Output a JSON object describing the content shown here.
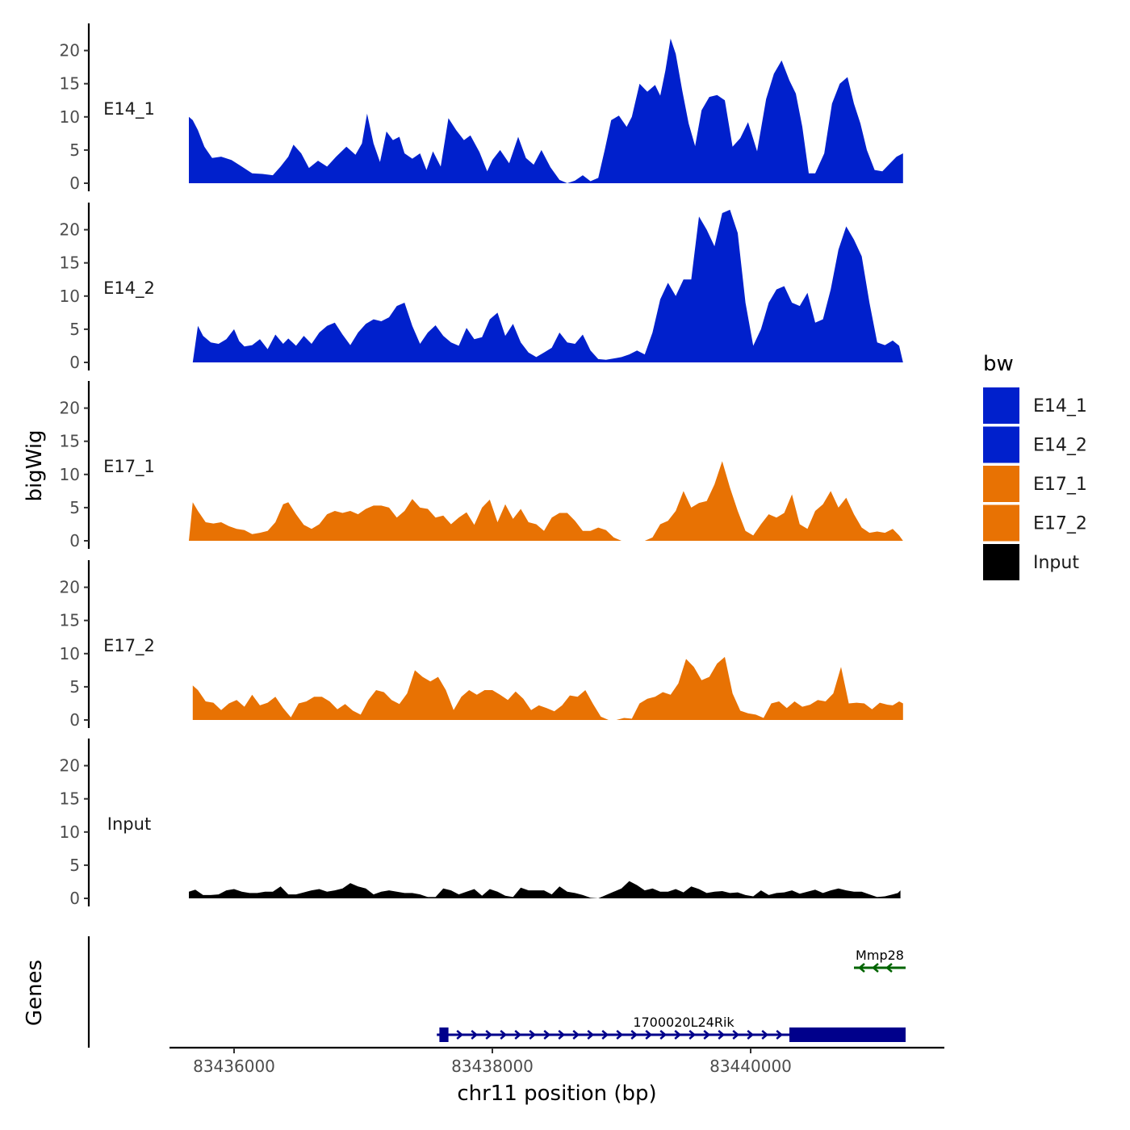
{
  "chart_data": {
    "type": "area",
    "title": "",
    "xlabel": "chr11 position (bp)",
    "ylabel": "bigWig",
    "genes_ylabel": "Genes",
    "xlim": [
      83435500,
      83441500
    ],
    "ylim": [
      0,
      24
    ],
    "x_ticks": [
      83436000,
      83438000,
      83440000
    ],
    "x_tick_labels": [
      "83436000",
      "83438000",
      "83440000"
    ],
    "y_ticks": [
      0,
      5,
      10,
      15,
      20
    ],
    "y_tick_labels": [
      "0",
      "5",
      "10",
      "15",
      "20"
    ],
    "legend": {
      "title": "bw",
      "position": "right",
      "entries": [
        {
          "label": "E14_1",
          "color": "#0020CC"
        },
        {
          "label": "E14_2",
          "color": "#0020CC"
        },
        {
          "label": "E17_1",
          "color": "#E87203"
        },
        {
          "label": "E17_2",
          "color": "#E87203"
        },
        {
          "label": "Input",
          "color": "#000000"
        }
      ]
    },
    "series": [
      {
        "name": "E14_1",
        "color": "#0020CC",
        "x": [
          83435650,
          83435680,
          83435720,
          83435770,
          83435830,
          83435900,
          83435980,
          83436060,
          83436140,
          83436220,
          83436300,
          83436360,
          83436420,
          83436460,
          83436520,
          83436580,
          83436650,
          83436720,
          83436790,
          83436870,
          83436940,
          83436990,
          83437030,
          83437080,
          83437130,
          83437180,
          83437230,
          83437280,
          83437320,
          83437380,
          83437440,
          83437490,
          83437540,
          83437600,
          83437660,
          83437720,
          83437780,
          83437830,
          83437900,
          83437960,
          83438000,
          83438060,
          83438130,
          83438200,
          83438260,
          83438320,
          83438380,
          83438450,
          83438520,
          83438580,
          83438640,
          83438700,
          83438760,
          83438820,
          83438870,
          83438920,
          83438980,
          83439040,
          83439080,
          83439140,
          83439200,
          83439260,
          83439300,
          83439340,
          83439380,
          83439420,
          83439470,
          83439520,
          83439570,
          83439620,
          83439680,
          83439740,
          83439800,
          83439860,
          83439920,
          83439980,
          83440050,
          83440120,
          83440180,
          83440240,
          83440300,
          83440350,
          83440400,
          83440450,
          83440500,
          83440570,
          83440630,
          83440690,
          83440750,
          83440800,
          83440850,
          83440900,
          83440960,
          83441020,
          83441080,
          83441130,
          83441180
        ],
        "y": [
          10,
          9.5,
          8,
          5.5,
          3.8,
          4,
          3.5,
          2.5,
          1.5,
          1.4,
          1.2,
          2.5,
          4,
          5.8,
          4.5,
          2.3,
          3.4,
          2.5,
          4,
          5.5,
          4.3,
          6,
          10.5,
          6,
          3.2,
          7.8,
          6.5,
          7,
          4.5,
          3.7,
          4.5,
          2,
          4.8,
          2.5,
          9.8,
          8,
          6.5,
          7.2,
          4.7,
          1.8,
          3.5,
          5,
          3,
          7,
          3.8,
          2.8,
          5,
          2.4,
          0.5,
          0,
          0.4,
          1.2,
          0.3,
          0.8,
          5,
          9.5,
          10.2,
          8.5,
          10,
          15,
          13.8,
          14.8,
          13.2,
          17,
          21.8,
          19.5,
          14,
          9,
          5.6,
          11,
          13,
          13.3,
          12.5,
          5.5,
          6.8,
          9.2,
          4.8,
          12.7,
          16.5,
          18.5,
          15.5,
          13.5,
          8.5,
          1.5,
          1.5,
          4.5,
          12,
          15,
          16,
          12,
          9,
          5,
          2,
          1.8,
          3,
          4,
          4.5
        ]
      },
      {
        "name": "E14_2",
        "color": "#0020CC",
        "x": [
          83435680,
          83435720,
          83435760,
          83435820,
          83435880,
          83435940,
          83436000,
          83436040,
          83436080,
          83436140,
          83436200,
          83436260,
          83436320,
          83436380,
          83436420,
          83436480,
          83436540,
          83436600,
          83436660,
          83436720,
          83436780,
          83436840,
          83436900,
          83436960,
          83437020,
          83437080,
          83437140,
          83437200,
          83437260,
          83437320,
          83437380,
          83437440,
          83437500,
          83437560,
          83437620,
          83437680,
          83437740,
          83437800,
          83437860,
          83437920,
          83437980,
          83438040,
          83438100,
          83438160,
          83438220,
          83438280,
          83438340,
          83438400,
          83438460,
          83438520,
          83438580,
          83438640,
          83438700,
          83438760,
          83438820,
          83438880,
          83438940,
          83439000,
          83439060,
          83439120,
          83439180,
          83439240,
          83439300,
          83439360,
          83439420,
          83439480,
          83439540,
          83439600,
          83439660,
          83439720,
          83439780,
          83439840,
          83439900,
          83439960,
          83440020,
          83440080,
          83440140,
          83440200,
          83440260,
          83440320,
          83440380,
          83440440,
          83440500,
          83440560,
          83440620,
          83440680,
          83440740,
          83440800,
          83440860,
          83440920,
          83440980,
          83441040,
          83441100,
          83441150,
          83441180
        ],
        "y": [
          0,
          5.5,
          4,
          3,
          2.8,
          3.5,
          5,
          3.2,
          2.4,
          2.6,
          3.5,
          2,
          4.2,
          2.8,
          3.6,
          2.5,
          4,
          2.8,
          4.5,
          5.5,
          6,
          4.2,
          2.6,
          4.5,
          5.8,
          6.5,
          6.2,
          6.8,
          8.5,
          9,
          5.5,
          2.8,
          4.5,
          5.6,
          4,
          3,
          2.5,
          5.2,
          3.5,
          3.8,
          6.5,
          7.5,
          4,
          5.8,
          3,
          1.5,
          0.8,
          1.5,
          2.2,
          4.5,
          3,
          2.8,
          4.2,
          1.8,
          0.5,
          0.4,
          0.6,
          0.8,
          1.2,
          1.8,
          1.2,
          4.5,
          9.5,
          12,
          10,
          12.5,
          12.5,
          22,
          20,
          17.5,
          22.5,
          23,
          19.5,
          9,
          2.5,
          5,
          9,
          11,
          11.5,
          9,
          8.5,
          10.5,
          6,
          6.5,
          11,
          17,
          20.5,
          18.5,
          16,
          9,
          3,
          2.6,
          3.3,
          2.5,
          0
        ]
      },
      {
        "name": "E17_1",
        "color": "#E87203",
        "x": [
          83435650,
          83435680,
          83435720,
          83435780,
          83435840,
          83435900,
          83435960,
          83436020,
          83436080,
          83436140,
          83436200,
          83436260,
          83436320,
          83436380,
          83436420,
          83436480,
          83436540,
          83436600,
          83436660,
          83436720,
          83436780,
          83436840,
          83436900,
          83436960,
          83437020,
          83437080,
          83437140,
          83437200,
          83437260,
          83437320,
          83437380,
          83437440,
          83437500,
          83437560,
          83437620,
          83437680,
          83437740,
          83437800,
          83437860,
          83437920,
          83437980,
          83438040,
          83438100,
          83438160,
          83438220,
          83438280,
          83438340,
          83438400,
          83438460,
          83438520,
          83438580,
          83438640,
          83438700,
          83438760,
          83438820,
          83438880,
          83438940,
          83439000,
          83439060,
          83439120,
          83439180,
          83439240,
          83439300,
          83439360,
          83439420,
          83439480,
          83439540,
          83439600,
          83439660,
          83439720,
          83439780,
          83439840,
          83439900,
          83439960,
          83440020,
          83440080,
          83440140,
          83440200,
          83440260,
          83440320,
          83440380,
          83440440,
          83440500,
          83440560,
          83440620,
          83440680,
          83440740,
          83440800,
          83440860,
          83440920,
          83440980,
          83441040,
          83441100,
          83441150,
          83441180
        ],
        "y": [
          0,
          5.8,
          4.5,
          2.8,
          2.6,
          2.8,
          2.2,
          1.8,
          1.6,
          1,
          1.2,
          1.5,
          2.8,
          5.5,
          5.8,
          4,
          2.4,
          1.8,
          2.5,
          4,
          4.5,
          4.2,
          4.5,
          4,
          4.8,
          5.3,
          5.3,
          5,
          3.5,
          4.5,
          6.3,
          5,
          4.8,
          3.5,
          3.8,
          2.5,
          3.5,
          4.3,
          2.4,
          5,
          6.2,
          2.8,
          5.5,
          3.3,
          4.8,
          2.8,
          2.5,
          1.5,
          3.5,
          4.2,
          4.2,
          3,
          1.5,
          1.5,
          2,
          1.6,
          0.5,
          0,
          0,
          0,
          0,
          0.5,
          2.5,
          3,
          4.5,
          7.5,
          5,
          5.7,
          6,
          8.5,
          12,
          8,
          4.5,
          1.5,
          0.8,
          2.5,
          4,
          3.5,
          4.2,
          7,
          2.5,
          1.8,
          4.5,
          5.5,
          7.5,
          5,
          6.5,
          4,
          2,
          1.2,
          1.4,
          1.2,
          1.8,
          0.8,
          0
        ]
      },
      {
        "name": "E17_2",
        "color": "#E87203",
        "x": [
          83435680,
          83435720,
          83435780,
          83435840,
          83435900,
          83435960,
          83436020,
          83436080,
          83436140,
          83436200,
          83436260,
          83436320,
          83436380,
          83436440,
          83436500,
          83436560,
          83436620,
          83436680,
          83436740,
          83436800,
          83436860,
          83436920,
          83436980,
          83437040,
          83437100,
          83437160,
          83437220,
          83437280,
          83437340,
          83437400,
          83437460,
          83437520,
          83437580,
          83437640,
          83437700,
          83437760,
          83437820,
          83437880,
          83437940,
          83438000,
          83438060,
          83438120,
          83438180,
          83438240,
          83438300,
          83438360,
          83438420,
          83438480,
          83438540,
          83438600,
          83438660,
          83438720,
          83438780,
          83438840,
          83438900,
          83438960,
          83439020,
          83439080,
          83439140,
          83439200,
          83439260,
          83439320,
          83439380,
          83439440,
          83439500,
          83439560,
          83439620,
          83439680,
          83439740,
          83439800,
          83439860,
          83439920,
          83439980,
          83440040,
          83440100,
          83440160,
          83440220,
          83440280,
          83440340,
          83440400,
          83440460,
          83440520,
          83440580,
          83440640,
          83440700,
          83440760,
          83440820,
          83440880,
          83440940,
          83441000,
          83441060,
          83441100,
          83441150,
          83441180
        ],
        "y": [
          5.2,
          4.5,
          2.8,
          2.6,
          1.5,
          2.5,
          3,
          2,
          3.8,
          2.2,
          2.6,
          3.5,
          1.8,
          0.4,
          2.5,
          2.8,
          3.5,
          3.5,
          2.8,
          1.6,
          2.4,
          1.4,
          0.8,
          3,
          4.5,
          4.2,
          3,
          2.4,
          4,
          7.5,
          6.5,
          5.8,
          6.5,
          4.5,
          1.5,
          3.5,
          4.5,
          3.8,
          4.5,
          4.5,
          3.8,
          3,
          4.3,
          3.2,
          1.5,
          2.2,
          1.8,
          1.3,
          2.2,
          3.7,
          3.5,
          4.5,
          2.4,
          0.5,
          0,
          0,
          0.3,
          0.2,
          2.5,
          3.2,
          3.5,
          4.2,
          3.8,
          5.5,
          9.2,
          8,
          6,
          6.5,
          8.5,
          9.5,
          4,
          1.4,
          1,
          0.8,
          0.3,
          2.5,
          2.8,
          1.8,
          2.8,
          2,
          2.3,
          3,
          2.8,
          4,
          8,
          2.5,
          2.6,
          2.5,
          1.6,
          2.6,
          2.3,
          2.2,
          2.8,
          2.5
        ]
      },
      {
        "name": "Input",
        "color": "#000000",
        "x": [
          83435650,
          83435700,
          83435760,
          83435820,
          83435880,
          83435940,
          83436000,
          83436060,
          83436120,
          83436180,
          83436240,
          83436300,
          83436360,
          83436420,
          83436480,
          83436540,
          83436600,
          83436660,
          83436720,
          83436780,
          83436840,
          83436900,
          83436960,
          83437020,
          83437080,
          83437140,
          83437200,
          83437260,
          83437320,
          83437380,
          83437440,
          83437500,
          83437560,
          83437620,
          83437680,
          83437740,
          83437800,
          83437860,
          83437920,
          83437980,
          83438040,
          83438100,
          83438160,
          83438220,
          83438280,
          83438340,
          83438400,
          83438460,
          83438520,
          83438580,
          83438640,
          83438700,
          83438760,
          83438820,
          83438880,
          83438940,
          83439000,
          83439060,
          83439120,
          83439180,
          83439240,
          83439300,
          83439360,
          83439420,
          83439480,
          83439540,
          83439600,
          83439660,
          83439720,
          83439780,
          83439840,
          83439900,
          83439960,
          83440020,
          83440080,
          83440140,
          83440200,
          83440260,
          83440320,
          83440380,
          83440440,
          83440500,
          83440560,
          83440620,
          83440680,
          83440740,
          83440800,
          83440860,
          83440920,
          83440980,
          83441040,
          83441100,
          83441140,
          83441160
        ],
        "y": [
          1,
          1.3,
          0.5,
          0.5,
          0.6,
          1.2,
          1.4,
          1,
          0.8,
          0.8,
          1,
          1,
          1.8,
          0.6,
          0.6,
          0.9,
          1.2,
          1.4,
          1,
          1.2,
          1.5,
          2.3,
          1.8,
          1.5,
          0.6,
          1,
          1.2,
          1,
          0.8,
          0.8,
          0.6,
          0.2,
          0.2,
          1.5,
          1.2,
          0.6,
          1,
          1.4,
          0.4,
          1.4,
          1,
          0.4,
          0.2,
          1.6,
          1.2,
          1.2,
          1.2,
          0.6,
          1.8,
          1,
          0.8,
          0.5,
          0.1,
          0,
          0.5,
          1,
          1.5,
          2.6,
          2,
          1.2,
          1.5,
          1,
          1,
          1.4,
          0.9,
          1.8,
          1.4,
          0.8,
          1,
          1.1,
          0.8,
          0.9,
          0.5,
          0.3,
          1.2,
          0.5,
          0.8,
          0.9,
          1.2,
          0.7,
          1,
          1.3,
          0.8,
          1.2,
          1.5,
          1.2,
          1,
          1,
          0.6,
          0.2,
          0.3,
          0.6,
          0.8,
          1.2
        ]
      }
    ],
    "genes": [
      {
        "name": "Mmp28",
        "strand": "-",
        "start": 83440800,
        "end": 83441200,
        "color": "#006400",
        "row": 1,
        "exons": []
      },
      {
        "name": "1700020L24Rik",
        "strand": "+",
        "start": 83437570,
        "end": 83441200,
        "color": "#00008B",
        "row": 0,
        "exons": [
          [
            83437590,
            83437660
          ],
          [
            83440300,
            83441200
          ]
        ]
      }
    ]
  }
}
